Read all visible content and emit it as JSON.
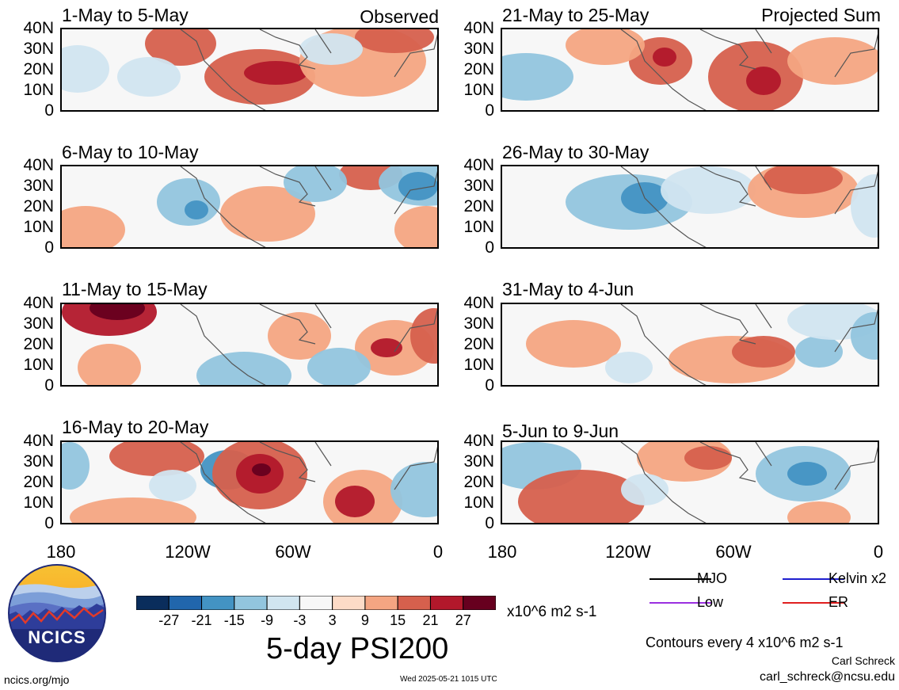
{
  "panels_left": [
    {
      "title": "1-May to 5-May",
      "tag": "Observed"
    },
    {
      "title": "6-May to 10-May",
      "tag": ""
    },
    {
      "title": "11-May to 15-May",
      "tag": ""
    },
    {
      "title": "16-May to 20-May",
      "tag": ""
    }
  ],
  "panels_right": [
    {
      "title": "21-May to 25-May",
      "tag": "Projected Sum"
    },
    {
      "title": "26-May to 30-May",
      "tag": ""
    },
    {
      "title": "31-May to 4-Jun",
      "tag": ""
    },
    {
      "title": "5-Jun to 9-Jun",
      "tag": ""
    }
  ],
  "y_ticks": [
    "40N",
    "30N",
    "20N",
    "10N",
    "0"
  ],
  "x_ticks": [
    "180",
    "120W",
    "60W",
    "0"
  ],
  "colorbar": {
    "labels": [
      "-27",
      "-21",
      "-15",
      "-9",
      "-3",
      "3",
      "9",
      "15",
      "21",
      "27"
    ],
    "units": "x10^6 m2 s-1",
    "colors": [
      "#0a2d5c",
      "#2166ac",
      "#4393c3",
      "#92c5de",
      "#d1e5f0",
      "#f7f7f7",
      "#fddbc7",
      "#f4a582",
      "#d6604d",
      "#b2182b",
      "#67001f"
    ]
  },
  "title": "5-day PSI200",
  "legend": {
    "mjo": "MJO",
    "kelvin": "Kelvin x2",
    "low": "Low",
    "er": "ER",
    "colors": {
      "mjo": "#000000",
      "kelvin": "#1f1fcf",
      "low": "#9b30e0",
      "er": "#e02020"
    }
  },
  "contours_note": "Contours every 4 x10^6 m2 s-1",
  "author": "Carl Schreck",
  "email": "carl_schreck@ncsu.edu",
  "website": "ncics.org/mjo",
  "timestamp": "Wed 2025-05-21 1015 UTC",
  "logo_text": "NCICS"
}
